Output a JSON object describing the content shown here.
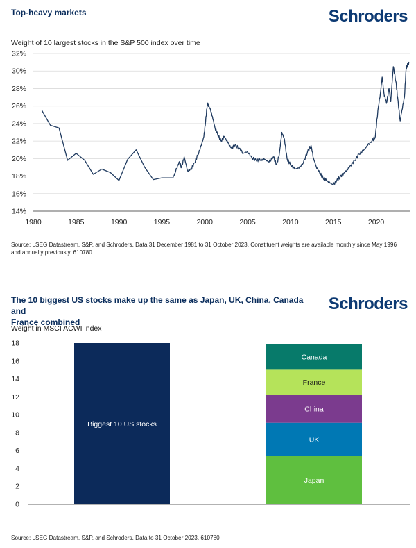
{
  "chart1": {
    "title": "Top-heavy markets",
    "logo": "Schroders",
    "subtitle": "Weight of 10 largest stocks in the S&P 500 index over time",
    "source": "Source: LSEG Datastream, S&P, and Schroders. Data 31 December 1981 to 31 October 2023. Constituent weights are available monthly since May 1996 and annually previously. 610780"
  },
  "chart2": {
    "title_line1": "The 10 biggest US stocks make up the same as Japan, UK, China, Canada and",
    "title_line2": "France combined",
    "logo": "Schroders",
    "subtitle": "Weight in MSCI ACWI index",
    "source": "Source: LSEG Datastream, S&P, and Schroders. Data to 31 October 2023. 610780"
  },
  "chart_data": [
    {
      "type": "line",
      "title": "Top-heavy markets",
      "subtitle": "Weight of 10 largest stocks in the S&P 500 index over time",
      "xlabel": "",
      "ylabel": "",
      "xlim": [
        1980,
        2024
      ],
      "ylim": [
        14,
        32
      ],
      "x_ticks": [
        1980,
        1985,
        1990,
        1995,
        2000,
        2005,
        2010,
        2015,
        2020
      ],
      "y_ticks": [
        14,
        16,
        18,
        20,
        22,
        24,
        26,
        28,
        30,
        32
      ],
      "y_tick_labels": [
        "14%",
        "16%",
        "18%",
        "20%",
        "22%",
        "24%",
        "26%",
        "28%",
        "30%",
        "32%"
      ],
      "grid": "horizontal",
      "color": "#1f3a5f",
      "series": [
        {
          "x": [
            1981,
            1982,
            1983,
            1984,
            1985,
            1986,
            1987,
            1988,
            1989,
            1990,
            1991,
            1992,
            1993,
            1994,
            1995,
            1996.3,
            1996.6,
            1997,
            1997.3,
            1997.6,
            1998,
            1998.4,
            1998.8,
            1999.2,
            1999.6,
            1999.9,
            2000.1,
            2000.3,
            2000.6,
            2000.9,
            2001.2,
            2001.5,
            2001.9,
            2002.3,
            2002.7,
            2003.1,
            2003.5,
            2004,
            2004.5,
            2005,
            2005.5,
            2006,
            2006.5,
            2007,
            2007.5,
            2008,
            2008.4,
            2008.7,
            2009,
            2009.3,
            2009.6,
            2010,
            2010.5,
            2011,
            2011.5,
            2012,
            2012.4,
            2012.7,
            2013,
            2013.4,
            2013.8,
            2014.2,
            2014.6,
            2015,
            2015.4,
            2015.8,
            2016.2,
            2016.6,
            2017,
            2017.5,
            2018,
            2018.5,
            2019,
            2019.5,
            2019.9,
            2020.2,
            2020.5,
            2020.7,
            2020.9,
            2021.2,
            2021.5,
            2021.7,
            2022,
            2022.3,
            2022.5,
            2022.8,
            2023,
            2023.3,
            2023.5,
            2023.7,
            2023.83
          ],
          "y": [
            25.5,
            23.8,
            23.5,
            19.8,
            20.6,
            19.8,
            18.2,
            18.8,
            18.4,
            17.5,
            19.9,
            21.0,
            19.0,
            17.6,
            17.8,
            17.8,
            18.5,
            19.6,
            19.0,
            20.2,
            18.6,
            18.8,
            19.5,
            20.4,
            21.5,
            22.5,
            24.2,
            26.3,
            25.8,
            24.8,
            23.5,
            22.8,
            22.0,
            22.5,
            21.8,
            21.2,
            21.5,
            21.2,
            20.6,
            20.8,
            20.1,
            19.8,
            19.8,
            19.9,
            19.6,
            20.2,
            19.3,
            20.5,
            23.0,
            22.2,
            20.0,
            19.3,
            18.8,
            18.9,
            19.5,
            20.8,
            21.5,
            20.0,
            19.1,
            18.4,
            17.8,
            17.5,
            17.2,
            17.0,
            17.5,
            17.9,
            18.3,
            18.7,
            19.2,
            19.8,
            20.5,
            20.9,
            21.5,
            22.0,
            22.5,
            25.5,
            27.5,
            29.3,
            27.5,
            26.3,
            28.0,
            26.5,
            30.5,
            28.8,
            27.0,
            24.3,
            25.5,
            27.0,
            30.3,
            30.8,
            30.9
          ]
        }
      ]
    },
    {
      "type": "bar",
      "title": "The 10 biggest US stocks make up the same as Japan, UK, China, Canada and France combined",
      "subtitle": "Weight in MSCI ACWI index",
      "ylim": [
        0,
        18
      ],
      "y_ticks": [
        0,
        2,
        4,
        6,
        8,
        10,
        12,
        14,
        16,
        18
      ],
      "grid": "none",
      "bars": [
        {
          "label": "Biggest 10 US stocks",
          "value": 18.0,
          "color": "#0c2a5a"
        },
        {
          "stacked": true,
          "segments": [
            {
              "label": "Japan",
              "value": 5.4,
              "color": "#5fbf3f"
            },
            {
              "label": "UK",
              "value": 3.7,
              "color": "#0078b4"
            },
            {
              "label": "China",
              "value": 3.1,
              "color": "#7b3b8e"
            },
            {
              "label": "France",
              "value": 2.9,
              "color": "#b5e35a"
            },
            {
              "label": "Canada",
              "value": 2.8,
              "color": "#077a6a"
            }
          ]
        }
      ]
    }
  ]
}
